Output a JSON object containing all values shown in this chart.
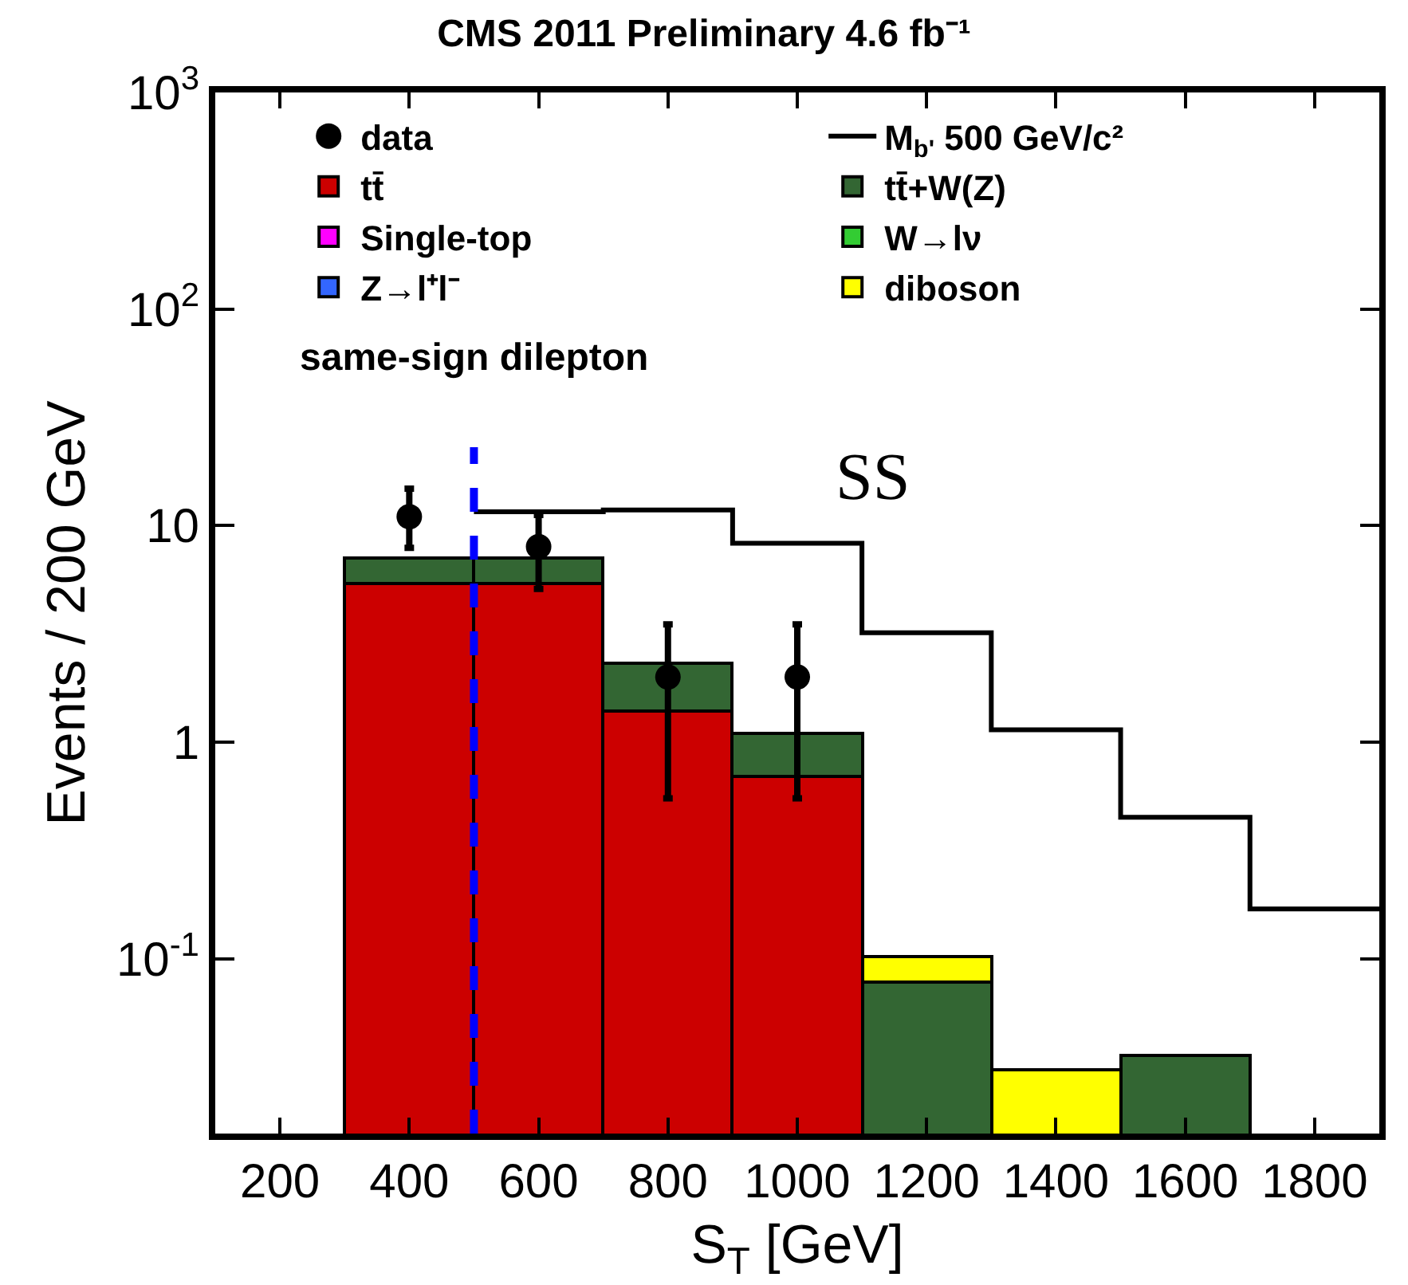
{
  "chart_data": {
    "type": "bar",
    "title": "CMS 2011 Preliminary 4.6 fb⁻¹",
    "xlabel": "S$_{T}$ [GeV]",
    "ylabel": "Events / 200 GeV",
    "x": [
      400,
      600,
      800,
      1000,
      1200,
      1400,
      1600
    ],
    "stacked": true,
    "log": "y",
    "grid": false,
    "legend": "top left",
    "xlim": [
      100,
      1900
    ],
    "xticks": [
      200,
      400,
      600,
      800,
      1000,
      1200,
      1400,
      1600,
      1800
    ],
    "ylim": [
      0.0156,
      1000
    ],
    "yticks": [
      {
        "value": 0.1,
        "label": "10$^{-1}$"
      },
      1,
      10,
      {
        "value": 100,
        "label": "10$^{2}$"
      },
      {
        "value": 1000,
        "label": "10$^{3}$"
      }
    ],
    "series": [
      {
        "name": "data",
        "type": "scatter",
        "color": "#000000",
        "marker": "circle",
        "x": [
          400,
          600,
          800,
          1000
        ],
        "values": [
          11,
          8,
          2,
          2
        ],
        "errors": [
          [
            7.9,
            14.8
          ],
          [
            5.1,
            11.2
          ],
          [
            0.55,
            3.5
          ],
          [
            0.55,
            3.5
          ]
        ]
      },
      {
        "name": "M$_{b'}$ 500 GeV/c²",
        "type": "step",
        "color": "#000000",
        "x": [
          500,
          700,
          900,
          1100,
          1300,
          1500,
          1700,
          1900
        ],
        "values": [
          11.6,
          11.8,
          8.3,
          3.2,
          1.14,
          0.45,
          0.17,
          0.17
        ]
      },
      {
        "name": "tt̄",
        "color": "#cc0000",
        "values": [
          5.4,
          5.4,
          1.4,
          0.7,
          null,
          null,
          null
        ]
      },
      {
        "name": "tt̄+W(Z)",
        "color": "#336633",
        "values": [
          1.7,
          1.7,
          0.92,
          0.39,
          0.078,
          null,
          0.0356
        ]
      },
      {
        "name": "Single-top",
        "color": "#ff00ff",
        "values": [
          null,
          null,
          null,
          null,
          null,
          null,
          null
        ]
      },
      {
        "name": "W→lν",
        "color": "#33cc33",
        "values": [
          null,
          null,
          null,
          null,
          null,
          null,
          null
        ]
      },
      {
        "name": "Z→l⁺l⁻",
        "color": "#3366ff",
        "values": [
          null,
          null,
          null,
          null,
          null,
          null,
          null
        ]
      },
      {
        "name": "diboson",
        "color": "#ffff00",
        "values": [
          null,
          null,
          null,
          null,
          0.025,
          0.0306,
          null
        ]
      },
      {
        "type": "line",
        "color": "#0000ff",
        "line_style": "dashed",
        "x": [
          500,
          500
        ],
        "values": [
          0.0156,
          23
        ]
      }
    ],
    "annotations": [
      "same-sign dilepton",
      "SS"
    ]
  }
}
